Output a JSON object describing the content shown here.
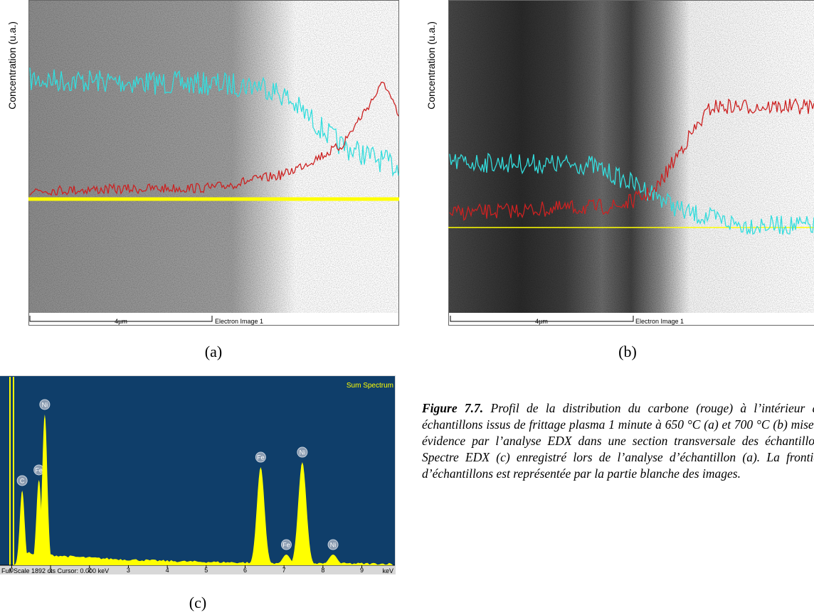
{
  "panels": [
    {
      "label": "(a)",
      "y_label": "Concentration (u.a.)",
      "scale_bar": "4µm",
      "image_label": "Electron Image 1"
    },
    {
      "label": "(b)",
      "y_label": "Concentration (u.a.)",
      "scale_bar": "4µm",
      "image_label": "Electron Image 1"
    }
  ],
  "spectrum": {
    "label": "(c)",
    "title": "Sum Spectrum",
    "x_label": "keV",
    "status": "Full Scale 1892 cts  Cursor: 0.000 keV",
    "full_scale": 1892,
    "xlim": [
      -0.3,
      9.85
    ],
    "xticks": [
      0,
      1,
      2,
      3,
      4,
      5,
      6,
      7,
      8,
      9
    ],
    "peaks": [
      {
        "element": "C",
        "energy": 0.27,
        "counts": 750
      },
      {
        "element": "Fe",
        "energy": 0.7,
        "counts": 857
      },
      {
        "element": "Ni",
        "energy": 0.85,
        "counts": 1514
      },
      {
        "element": "Fe",
        "energy": 6.4,
        "counts": 985
      },
      {
        "element": "Fe",
        "energy": 7.06,
        "counts": 107
      },
      {
        "element": "Ni",
        "energy": 7.47,
        "counts": 1035
      },
      {
        "element": "Ni",
        "energy": 8.26,
        "counts": 107
      }
    ]
  },
  "caption": {
    "figure_number": "Figure 7.7.",
    "text": "Profil de la distribution du carbone (rouge) à l’intérieur des échantillons issus de frittage plasma 1 minute à 650 °C (a) et 700 °C (b) mise en évidence par l’analyse EDX dans une section transversale des échantillons. Spectre EDX (c) enregistré lors de l’analyse d’échantillon (a). La frontière d’échantillons est représentée par la partie blanche des images."
  }
}
